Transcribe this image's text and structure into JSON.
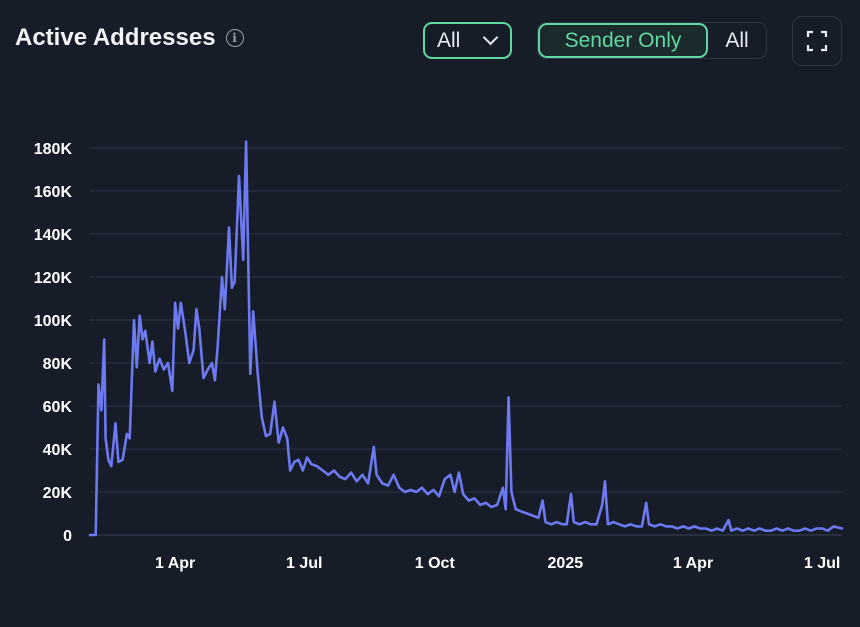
{
  "header": {
    "title": "Active Addresses",
    "info_icon": "info-icon",
    "filter_value": "All",
    "toggle": {
      "active": "Sender Only",
      "inactive": "All"
    },
    "expand_icon": "fullscreen-icon"
  },
  "colors": {
    "accent": "#5fd9a0",
    "line": "#6d79f0",
    "grid": "#2a3346",
    "background": "#161c28"
  },
  "chart_data": {
    "type": "line",
    "title": "Active Addresses",
    "xlabel": "",
    "ylabel": "",
    "x_range": [
      "2024-02-01",
      "2025-07-15"
    ],
    "ylim": [
      0,
      180000
    ],
    "grid": true,
    "y_ticks": [
      {
        "value": 0,
        "label": "0"
      },
      {
        "value": 20000,
        "label": "20K"
      },
      {
        "value": 40000,
        "label": "40K"
      },
      {
        "value": 60000,
        "label": "60K"
      },
      {
        "value": 80000,
        "label": "80K"
      },
      {
        "value": 100000,
        "label": "100K"
      },
      {
        "value": 120000,
        "label": "120K"
      },
      {
        "value": 140000,
        "label": "140K"
      },
      {
        "value": 160000,
        "label": "160K"
      },
      {
        "value": 180000,
        "label": "180K"
      }
    ],
    "x_ticks": [
      {
        "date": "2024-04-01",
        "label": "1 Apr"
      },
      {
        "date": "2024-07-01",
        "label": "1 Jul"
      },
      {
        "date": "2024-10-01",
        "label": "1 Oct"
      },
      {
        "date": "2025-01-01",
        "label": "2025"
      },
      {
        "date": "2025-04-01",
        "label": "1 Apr"
      },
      {
        "date": "2025-07-01",
        "label": "1 Jul"
      }
    ],
    "series": [
      {
        "points": [
          [
            "2024-02-01",
            0
          ],
          [
            "2024-02-05",
            0
          ],
          [
            "2024-02-07",
            70000
          ],
          [
            "2024-02-09",
            58000
          ],
          [
            "2024-02-11",
            91000
          ],
          [
            "2024-02-12",
            45000
          ],
          [
            "2024-02-14",
            35000
          ],
          [
            "2024-02-16",
            32000
          ],
          [
            "2024-02-19",
            52000
          ],
          [
            "2024-02-21",
            34000
          ],
          [
            "2024-02-24",
            35000
          ],
          [
            "2024-02-27",
            47000
          ],
          [
            "2024-02-29",
            45000
          ],
          [
            "2024-03-03",
            100000
          ],
          [
            "2024-03-05",
            78000
          ],
          [
            "2024-03-07",
            102000
          ],
          [
            "2024-03-09",
            91000
          ],
          [
            "2024-03-11",
            95000
          ],
          [
            "2024-03-14",
            80000
          ],
          [
            "2024-03-16",
            90000
          ],
          [
            "2024-03-18",
            76000
          ],
          [
            "2024-03-21",
            82000
          ],
          [
            "2024-03-24",
            77000
          ],
          [
            "2024-03-27",
            80000
          ],
          [
            "2024-03-30",
            67000
          ],
          [
            "2024-04-01",
            108000
          ],
          [
            "2024-04-03",
            96000
          ],
          [
            "2024-04-05",
            108000
          ],
          [
            "2024-04-08",
            95000
          ],
          [
            "2024-04-11",
            80000
          ],
          [
            "2024-04-14",
            86000
          ],
          [
            "2024-04-16",
            105000
          ],
          [
            "2024-04-18",
            96000
          ],
          [
            "2024-04-21",
            73000
          ],
          [
            "2024-04-24",
            77000
          ],
          [
            "2024-04-27",
            80000
          ],
          [
            "2024-04-29",
            72000
          ],
          [
            "2024-05-01",
            88000
          ],
          [
            "2024-05-04",
            120000
          ],
          [
            "2024-05-06",
            105000
          ],
          [
            "2024-05-09",
            143000
          ],
          [
            "2024-05-11",
            115000
          ],
          [
            "2024-05-13",
            118000
          ],
          [
            "2024-05-16",
            167000
          ],
          [
            "2024-05-19",
            128000
          ],
          [
            "2024-05-21",
            183000
          ],
          [
            "2024-05-24",
            75000
          ],
          [
            "2024-05-26",
            104000
          ],
          [
            "2024-05-29",
            77000
          ],
          [
            "2024-06-01",
            55000
          ],
          [
            "2024-06-04",
            46000
          ],
          [
            "2024-06-07",
            47000
          ],
          [
            "2024-06-10",
            62000
          ],
          [
            "2024-06-13",
            43000
          ],
          [
            "2024-06-16",
            50000
          ],
          [
            "2024-06-19",
            45000
          ],
          [
            "2024-06-21",
            30000
          ],
          [
            "2024-06-24",
            34000
          ],
          [
            "2024-06-27",
            35000
          ],
          [
            "2024-06-30",
            30000
          ],
          [
            "2024-07-03",
            36000
          ],
          [
            "2024-07-06",
            33000
          ],
          [
            "2024-07-10",
            32000
          ],
          [
            "2024-07-14",
            30000
          ],
          [
            "2024-07-18",
            28000
          ],
          [
            "2024-07-22",
            30000
          ],
          [
            "2024-07-26",
            27000
          ],
          [
            "2024-07-30",
            26000
          ],
          [
            "2024-08-03",
            29000
          ],
          [
            "2024-08-07",
            25000
          ],
          [
            "2024-08-11",
            28000
          ],
          [
            "2024-08-15",
            24000
          ],
          [
            "2024-08-19",
            41000
          ],
          [
            "2024-08-21",
            28000
          ],
          [
            "2024-08-25",
            24000
          ],
          [
            "2024-08-29",
            23000
          ],
          [
            "2024-09-02",
            28000
          ],
          [
            "2024-09-06",
            22000
          ],
          [
            "2024-09-10",
            20000
          ],
          [
            "2024-09-14",
            21000
          ],
          [
            "2024-09-18",
            20000
          ],
          [
            "2024-09-22",
            22000
          ],
          [
            "2024-09-26",
            19000
          ],
          [
            "2024-09-30",
            21000
          ],
          [
            "2024-10-04",
            18000
          ],
          [
            "2024-10-08",
            26000
          ],
          [
            "2024-10-12",
            28000
          ],
          [
            "2024-10-15",
            20000
          ],
          [
            "2024-10-18",
            29000
          ],
          [
            "2024-10-21",
            19000
          ],
          [
            "2024-10-25",
            16000
          ],
          [
            "2024-10-29",
            17000
          ],
          [
            "2024-11-02",
            14000
          ],
          [
            "2024-11-06",
            15000
          ],
          [
            "2024-11-10",
            13000
          ],
          [
            "2024-11-14",
            14000
          ],
          [
            "2024-11-18",
            22000
          ],
          [
            "2024-11-20",
            12000
          ],
          [
            "2024-11-22",
            64000
          ],
          [
            "2024-11-24",
            20000
          ],
          [
            "2024-11-27",
            12000
          ],
          [
            "2024-12-01",
            11000
          ],
          [
            "2024-12-05",
            10000
          ],
          [
            "2024-12-09",
            9000
          ],
          [
            "2024-12-13",
            8000
          ],
          [
            "2024-12-16",
            16000
          ],
          [
            "2024-12-18",
            6000
          ],
          [
            "2024-12-22",
            5000
          ],
          [
            "2024-12-26",
            6000
          ],
          [
            "2024-12-30",
            5000
          ],
          [
            "2025-01-02",
            5000
          ],
          [
            "2025-01-05",
            19000
          ],
          [
            "2025-01-07",
            6000
          ],
          [
            "2025-01-11",
            5000
          ],
          [
            "2025-01-15",
            6000
          ],
          [
            "2025-01-19",
            5000
          ],
          [
            "2025-01-23",
            5000
          ],
          [
            "2025-01-27",
            14000
          ],
          [
            "2025-01-29",
            25000
          ],
          [
            "2025-01-31",
            5000
          ],
          [
            "2025-02-04",
            6000
          ],
          [
            "2025-02-08",
            5000
          ],
          [
            "2025-02-12",
            4000
          ],
          [
            "2025-02-16",
            5000
          ],
          [
            "2025-02-20",
            4000
          ],
          [
            "2025-02-24",
            4000
          ],
          [
            "2025-02-27",
            15000
          ],
          [
            "2025-03-01",
            5000
          ],
          [
            "2025-03-05",
            4000
          ],
          [
            "2025-03-09",
            5000
          ],
          [
            "2025-03-13",
            4000
          ],
          [
            "2025-03-17",
            4000
          ],
          [
            "2025-03-21",
            3000
          ],
          [
            "2025-03-25",
            4000
          ],
          [
            "2025-03-29",
            3000
          ],
          [
            "2025-04-02",
            4000
          ],
          [
            "2025-04-06",
            3000
          ],
          [
            "2025-04-10",
            3000
          ],
          [
            "2025-04-14",
            2000
          ],
          [
            "2025-04-18",
            3000
          ],
          [
            "2025-04-22",
            2000
          ],
          [
            "2025-04-26",
            7000
          ],
          [
            "2025-04-28",
            2000
          ],
          [
            "2025-05-02",
            3000
          ],
          [
            "2025-05-06",
            2000
          ],
          [
            "2025-05-10",
            3000
          ],
          [
            "2025-05-14",
            2000
          ],
          [
            "2025-05-18",
            3000
          ],
          [
            "2025-05-22",
            2000
          ],
          [
            "2025-05-26",
            2000
          ],
          [
            "2025-05-30",
            3000
          ],
          [
            "2025-06-03",
            2000
          ],
          [
            "2025-06-07",
            3000
          ],
          [
            "2025-06-11",
            2000
          ],
          [
            "2025-06-15",
            2000
          ],
          [
            "2025-06-19",
            3000
          ],
          [
            "2025-06-23",
            2000
          ],
          [
            "2025-06-27",
            3000
          ],
          [
            "2025-07-01",
            3000
          ],
          [
            "2025-07-05",
            2000
          ],
          [
            "2025-07-09",
            4000
          ],
          [
            "2025-07-15",
            3000
          ]
        ]
      }
    ]
  }
}
